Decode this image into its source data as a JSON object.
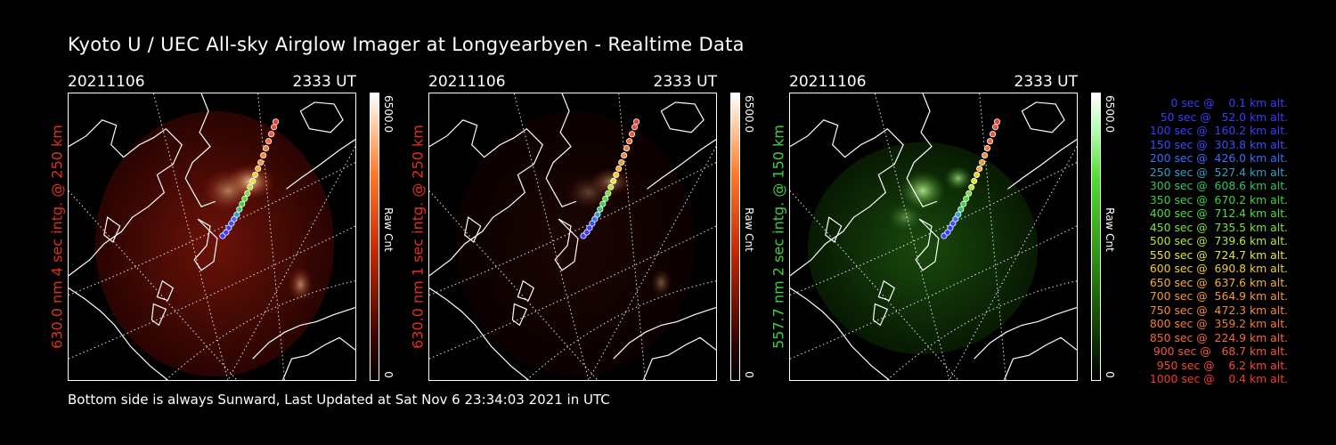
{
  "title": "Kyoto U / UEC All-sky Airglow Imager at Longyearbyen - Realtime Data",
  "panels": [
    {
      "date": "20211106",
      "ut": "2333 UT",
      "ylabel": "630.0 nm 4 sec intg. @ 250 km",
      "ylabel_color": "#e0301c",
      "colorbar_max": "6500.0",
      "colorbar_min": "0",
      "colorbar_label": "Raw Cnt",
      "emission_color": "red",
      "intensity": "bright"
    },
    {
      "date": "20211106",
      "ut": "2333 UT",
      "ylabel": "630.0 nm 1 sec intg. @ 250 km",
      "ylabel_color": "#e0301c",
      "colorbar_max": "6500.0",
      "colorbar_min": "0",
      "colorbar_label": "Raw Cnt",
      "emission_color": "red",
      "intensity": "faint"
    },
    {
      "date": "20211106",
      "ut": "2333 UT",
      "ylabel": "557.7 nm 2 sec intg. @ 150 km",
      "ylabel_color": "#3fcf3f",
      "colorbar_max": "6500.0",
      "colorbar_min": "0",
      "colorbar_label": "Raw Cnt",
      "emission_color": "green",
      "intensity": "medium"
    }
  ],
  "legend": [
    {
      "text": "   0 sec @    0.1 km alt.",
      "color": "#3b3bff"
    },
    {
      "text": "  50 sec @   52.0 km alt.",
      "color": "#3b3bff"
    },
    {
      "text": " 100 sec @  160.2 km alt.",
      "color": "#3b3bff"
    },
    {
      "text": " 150 sec @  303.8 km alt.",
      "color": "#3b4cff"
    },
    {
      "text": " 200 sec @  426.0 km alt.",
      "color": "#3b6cff"
    },
    {
      "text": " 250 sec @  527.4 km alt.",
      "color": "#2f9fc8"
    },
    {
      "text": " 300 sec @  608.6 km alt.",
      "color": "#33c26a"
    },
    {
      "text": " 350 sec @  670.2 km alt.",
      "color": "#3fd23f"
    },
    {
      "text": " 400 sec @  712.4 km alt.",
      "color": "#4ade3a"
    },
    {
      "text": " 450 sec @  735.5 km alt.",
      "color": "#7ae03a"
    },
    {
      "text": " 500 sec @  739.6 km alt.",
      "color": "#b9e63a"
    },
    {
      "text": " 550 sec @  724.7 km alt.",
      "color": "#e8e43a"
    },
    {
      "text": " 600 sec @  690.8 km alt.",
      "color": "#f2cc36"
    },
    {
      "text": " 650 sec @  637.6 km alt.",
      "color": "#f2b036"
    },
    {
      "text": " 700 sec @  564.9 km alt.",
      "color": "#f29a36"
    },
    {
      "text": " 750 sec @  472.3 km alt.",
      "color": "#f28a36"
    },
    {
      "text": " 800 sec @  359.2 km alt.",
      "color": "#f27a36"
    },
    {
      "text": " 850 sec @  224.9 km alt.",
      "color": "#f26a36"
    },
    {
      "text": " 900 sec @   68.7 km alt.",
      "color": "#f25a36"
    },
    {
      "text": " 950 sec @    6.2 km alt.",
      "color": "#f24a36"
    },
    {
      "text": "1000 sec @    0.4 km alt.",
      "color": "#f23a36"
    }
  ],
  "footer": "Bottom side is always Sunward, Last Updated at Sat Nov  6 23:34:03 2021 in UTC"
}
